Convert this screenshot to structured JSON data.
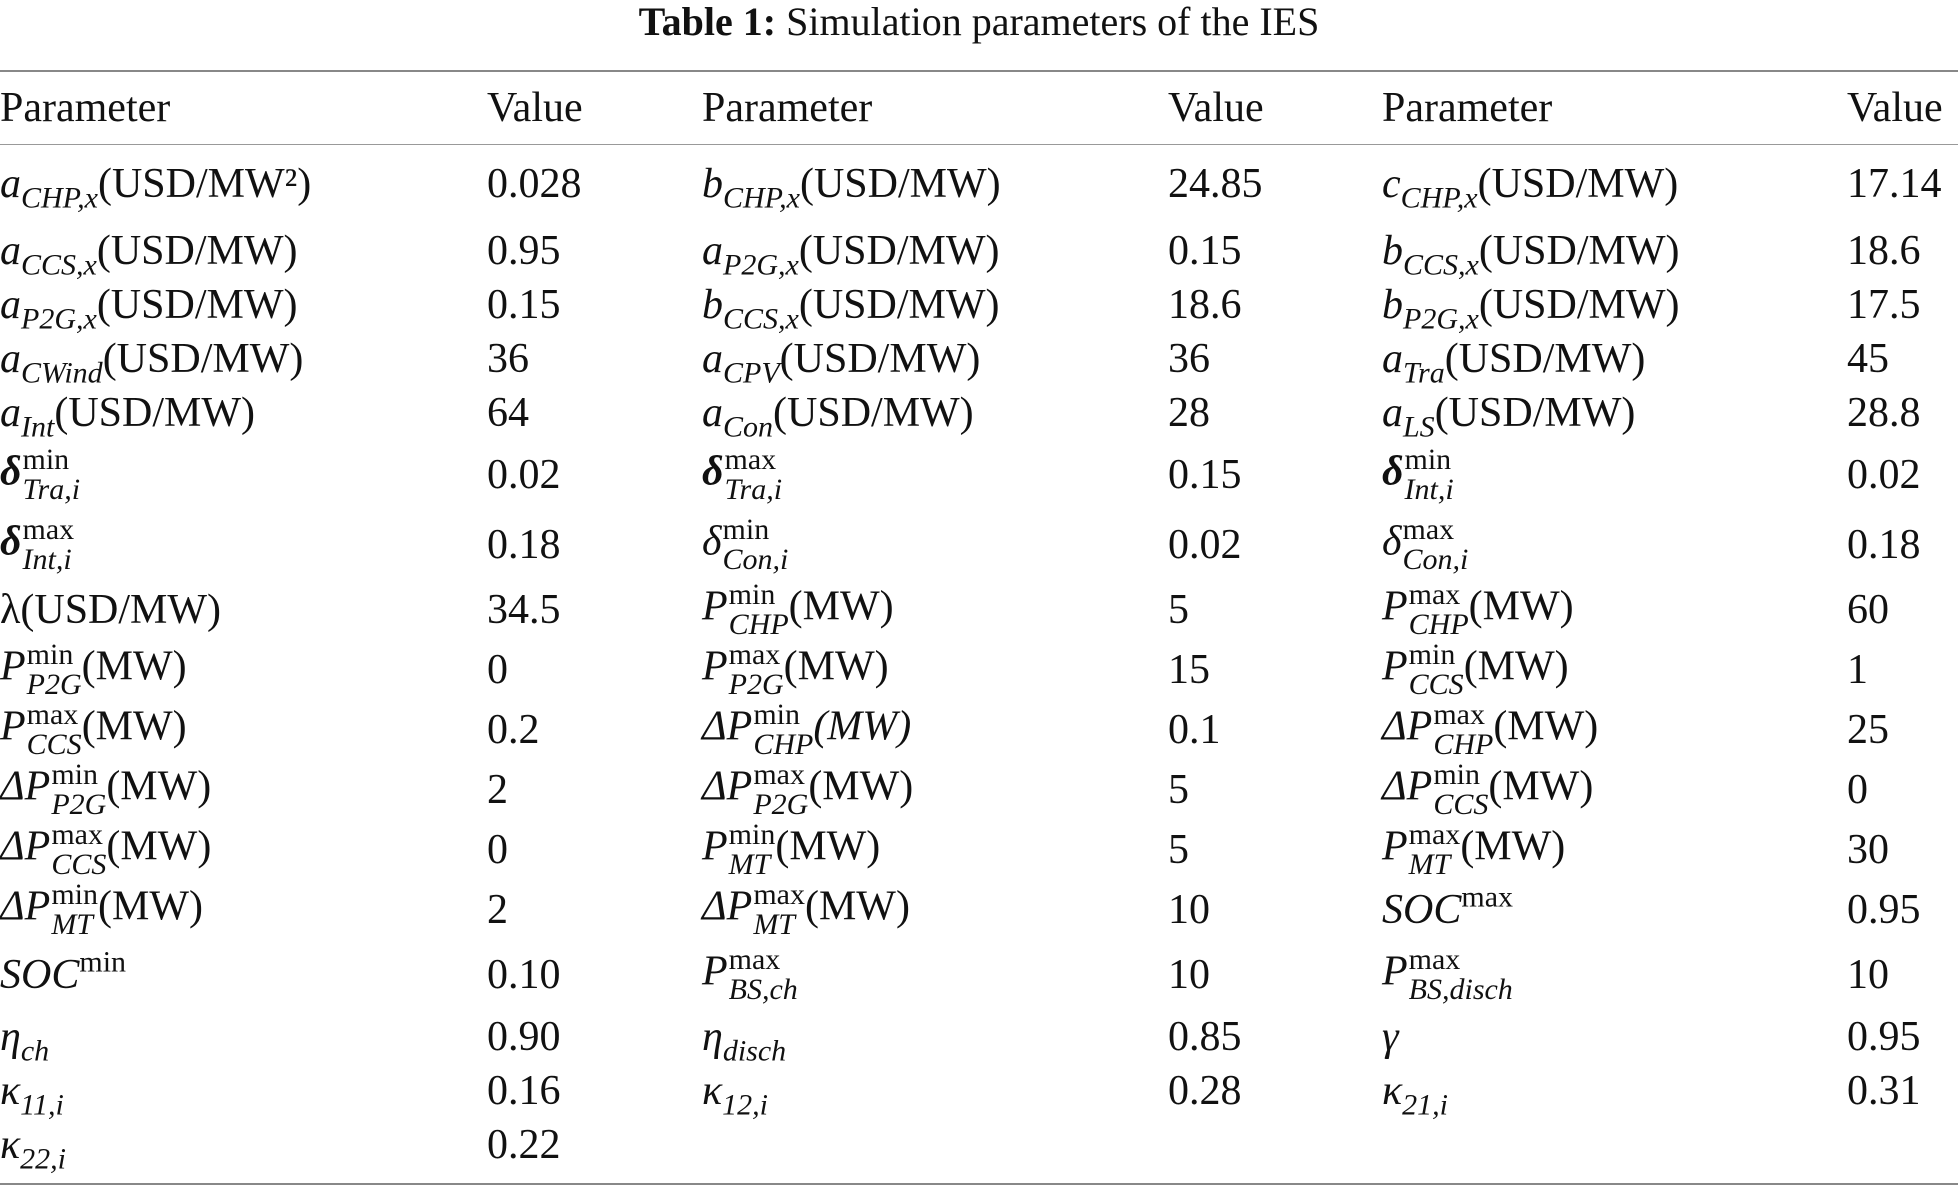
{
  "caption": {
    "label": "Table 1:",
    "text": "Simulation parameters of the IES"
  },
  "headers": [
    "Parameter",
    "Value",
    "Parameter",
    "Value",
    "Parameter",
    "Value"
  ],
  "rows": [
    [
      {
        "sym": "a",
        "sub": "CHP,x",
        "unit": "(USD/MW²)",
        "value": "0.028"
      },
      {
        "sym": "b",
        "sub": "CHP,x",
        "unit": "(USD/MW)",
        "value": "24.85"
      },
      {
        "sym": "c",
        "sub": "CHP,x",
        "unit": "(USD/MW)",
        "value": "17.14"
      }
    ],
    [
      {
        "sym": "a",
        "sub": "CCS,x",
        "unit": "(USD/MW)",
        "value": "0.95"
      },
      {
        "sym": "a",
        "sub": "P2G,x",
        "unit": "(USD/MW)",
        "value": "0.15"
      },
      {
        "sym": "b",
        "sub": "CCS,x",
        "unit": "(USD/MW)",
        "value": "18.6"
      }
    ],
    [
      {
        "sym": "a",
        "sub": "P2G,x",
        "unit": "(USD/MW)",
        "value": "0.15"
      },
      {
        "sym": "b",
        "sub": "CCS,x",
        "unit": "(USD/MW)",
        "value": "18.6"
      },
      {
        "sym": "b",
        "sub": "P2G,x",
        "unit": "(USD/MW)",
        "value": "17.5"
      }
    ],
    [
      {
        "sym": "a",
        "sub": "CWind",
        "unit": "(USD/MW)",
        "value": "36"
      },
      {
        "sym": "a",
        "sub": "CPV",
        "unit": "(USD/MW)",
        "value": "36"
      },
      {
        "sym": "a",
        "sub": "Tra",
        "unit": "(USD/MW)",
        "value": "45"
      }
    ],
    [
      {
        "sym": "a",
        "sub": "Int",
        "unit": "(USD/MW)",
        "value": "64"
      },
      {
        "sym": "a",
        "sub": "Con",
        "unit": "(USD/MW)",
        "value": "28"
      },
      {
        "sym": "a",
        "sub": "LS",
        "unit": "(USD/MW)",
        "value": "28.8"
      }
    ],
    [
      {
        "sym": "δ",
        "bold": true,
        "sup": "min",
        "sub": "Tra,i",
        "unit": "",
        "value": "0.02"
      },
      {
        "sym": "δ",
        "bold": true,
        "sup": "max",
        "sub": "Tra,i",
        "unit": "",
        "value": "0.15"
      },
      {
        "sym": "δ",
        "bold": true,
        "sup": "min",
        "sub": "Int,i",
        "unit": "",
        "value": "0.02"
      }
    ],
    [
      {
        "sym": "δ",
        "bold": true,
        "sup": "max",
        "sub": "Int,i",
        "unit": "",
        "value": "0.18"
      },
      {
        "sym": "δ",
        "sup": "min",
        "sub": "Con,i",
        "unit": "",
        "value": "0.02"
      },
      {
        "sym": "δ",
        "sup": "max",
        "sub": "Con,i",
        "unit": "",
        "value": "0.18"
      }
    ],
    [
      {
        "sym": "λ",
        "upright": true,
        "unit": "(USD/MW)",
        "value": "34.5"
      },
      {
        "sym": "P",
        "sup": "min",
        "sub": "CHP",
        "unit": "(MW)",
        "value": "5"
      },
      {
        "sym": "P",
        "sup": "max",
        "sub": "CHP",
        "unit": "(MW)",
        "value": "60"
      }
    ],
    [
      {
        "sym": "P",
        "sup": "min",
        "sub": "P2G",
        "unit": "(MW)",
        "value": "0"
      },
      {
        "sym": "P",
        "sup": "max",
        "sub": "P2G",
        "unit": "(MW)",
        "value": "15"
      },
      {
        "sym": "P",
        "sup": "min",
        "sub": "CCS",
        "unit": "(MW)",
        "value": "1"
      }
    ],
    [
      {
        "sym": "P",
        "sup": "max",
        "sub": "CCS",
        "unit": "(MW)",
        "value": "0.2"
      },
      {
        "sym": "ΔP",
        "sup": "min",
        "sub": "CHP",
        "unit": "(MW)",
        "unit_italic": true,
        "value": "0.1"
      },
      {
        "sym": "ΔP",
        "sup": "max",
        "sub": "CHP",
        "unit": "(MW)",
        "value": "25"
      }
    ],
    [
      {
        "sym": "ΔP",
        "sup": "min",
        "sub": "P2G",
        "unit": "(MW)",
        "value": "2"
      },
      {
        "sym": "ΔP",
        "sup": "max",
        "sub": "P2G",
        "unit": "(MW)",
        "value": "5"
      },
      {
        "sym": "ΔP",
        "sup": "min",
        "sub": "CCS",
        "unit": "(MW)",
        "value": "0"
      }
    ],
    [
      {
        "sym": "ΔP",
        "sup": "max",
        "sub": "CCS",
        "unit": "(MW)",
        "value": "0"
      },
      {
        "sym": "P",
        "sup": "min",
        "sub": "MT",
        "unit": "(MW)",
        "value": "5"
      },
      {
        "sym": "P",
        "sup": "max",
        "sub": "MT",
        "unit": "(MW)",
        "value": "30"
      }
    ],
    [
      {
        "sym": "ΔP",
        "sup": "min",
        "sub": "MT",
        "unit": "(MW)",
        "value": "2"
      },
      {
        "sym": "ΔP",
        "sup": "max",
        "sub": "MT",
        "unit": "(MW)",
        "value": "10"
      },
      {
        "sym": "SOC",
        "sup": "max",
        "unit": "",
        "value": "0.95"
      }
    ],
    [
      {
        "sym": "SOC",
        "sup": "min",
        "unit": "",
        "value": "0.10"
      },
      {
        "sym": "P",
        "sup": "max",
        "sub": "BS,ch",
        "unit": "",
        "value": "10"
      },
      {
        "sym": "P",
        "sup": "max",
        "sub": "BS,disch",
        "unit": "",
        "value": "10"
      }
    ],
    [
      {
        "sym": "η",
        "sub": "ch",
        "unit": "",
        "value": "0.90"
      },
      {
        "sym": "η",
        "sub": "disch",
        "unit": "",
        "value": "0.85"
      },
      {
        "sym": "γ",
        "unit": "",
        "value": "0.95"
      }
    ],
    [
      {
        "sym": "κ",
        "sub": "11,i",
        "unit": "",
        "value": "0.16"
      },
      {
        "sym": "κ",
        "sub": "12,i",
        "unit": "",
        "value": "0.28"
      },
      {
        "sym": "κ",
        "sub": "21,i",
        "unit": "",
        "value": "0.31"
      }
    ],
    [
      {
        "sym": "κ",
        "sub": "22,i",
        "unit": "",
        "value": "0.22"
      },
      null,
      null
    ]
  ]
}
